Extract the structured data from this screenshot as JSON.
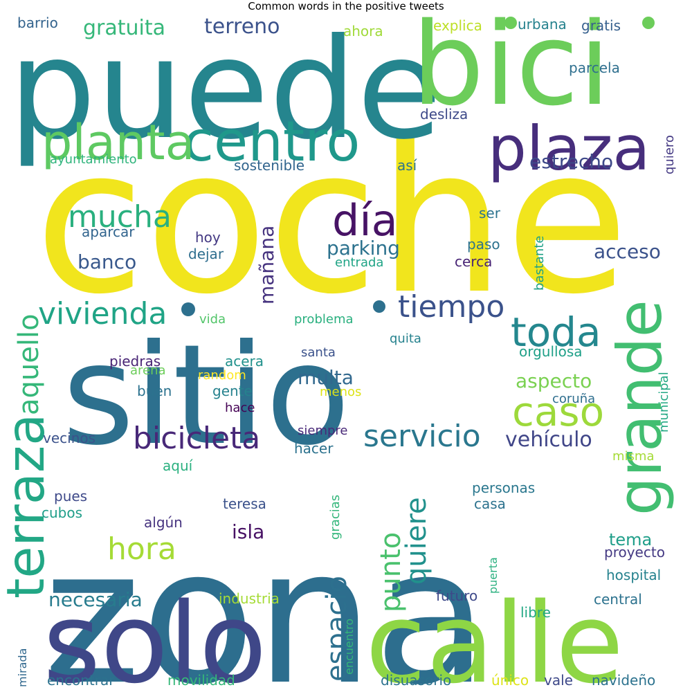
{
  "title": "Common words in the positive tweets",
  "words": [
    {
      "text": "coche",
      "color": "#f1e51d"
    },
    {
      "text": "zona",
      "color": "#2d6e8e"
    },
    {
      "text": "sitio",
      "color": "#2d708e"
    },
    {
      "text": "puede",
      "color": "#25858e"
    },
    {
      "text": "bici",
      "color": "#6ccd5a"
    },
    {
      "text": "calle",
      "color": "#8ed645"
    },
    {
      "text": "solo",
      "color": "#3f4788"
    },
    {
      "text": "grande",
      "color": "#42be71"
    },
    {
      "text": "plaza",
      "color": "#472e7c"
    },
    {
      "text": "centro",
      "color": "#1f988b"
    },
    {
      "text": "planta",
      "color": "#5ec962"
    },
    {
      "text": "terraza",
      "color": "#22a785"
    },
    {
      "text": "día",
      "color": "#471365"
    },
    {
      "text": "toda",
      "color": "#24878e"
    },
    {
      "text": "caso",
      "color": "#9dd93b"
    },
    {
      "text": "vivienda",
      "color": "#20a486"
    },
    {
      "text": "tiempo",
      "color": "#3b528b"
    },
    {
      "text": "bicicleta",
      "color": "#482878"
    },
    {
      "text": "servicio",
      "color": "#2a778e"
    },
    {
      "text": "mucha",
      "color": "#2ab07f"
    },
    {
      "text": "hora",
      "color": "#a5db36"
    },
    {
      "text": "aquello",
      "color": "#35b779"
    },
    {
      "text": "espacio",
      "color": "#2d708e"
    },
    {
      "text": "quiere",
      "color": "#21918c"
    },
    {
      "text": "punto",
      "color": "#4ac16d"
    },
    {
      "text": "gratuita",
      "color": "#35b779"
    },
    {
      "text": "terreno",
      "color": "#3b528b"
    },
    {
      "text": "vehículo",
      "color": "#404688"
    },
    {
      "text": "parking",
      "color": "#2c728e"
    },
    {
      "text": "estrecho",
      "color": "#3e4989"
    },
    {
      "text": "acceso",
      "color": "#3b528b"
    },
    {
      "text": "banco",
      "color": "#38588c"
    },
    {
      "text": "aspecto",
      "color": "#7ad151"
    },
    {
      "text": "multa",
      "color": "#31688e"
    },
    {
      "text": "mañana",
      "color": "#46337f"
    },
    {
      "text": "necesaria",
      "color": "#287c8e"
    },
    {
      "text": "isla",
      "color": "#471164"
    },
    {
      "text": "tema",
      "color": "#1f9e89"
    },
    {
      "text": "barrio",
      "color": "#33638d"
    },
    {
      "text": "ahora",
      "color": "#a0da39"
    },
    {
      "text": "explica",
      "color": "#bddf26"
    },
    {
      "text": "urbana",
      "color": "#26828e"
    },
    {
      "text": "gratis",
      "color": "#355f8d"
    },
    {
      "text": "parcela",
      "color": "#2e6f8e"
    },
    {
      "text": "desliza",
      "color": "#3e4a89"
    },
    {
      "text": "quiero",
      "color": "#443983"
    },
    {
      "text": "ayuntamiento",
      "color": "#2fb47c"
    },
    {
      "text": "sostenible",
      "color": "#32658e"
    },
    {
      "text": "así",
      "color": "#2c738e"
    },
    {
      "text": "ser",
      "color": "#2c738e"
    },
    {
      "text": "aparcar",
      "color": "#32658e"
    },
    {
      "text": "hoy",
      "color": "#443983"
    },
    {
      "text": "dejar",
      "color": "#2e6e8e"
    },
    {
      "text": "paso",
      "color": "#2c728e"
    },
    {
      "text": "entrada",
      "color": "#20a486"
    },
    {
      "text": "cerca",
      "color": "#482475"
    },
    {
      "text": "bastante",
      "color": "#1fa187"
    },
    {
      "text": "vida",
      "color": "#52c569"
    },
    {
      "text": "problema",
      "color": "#2ab07f"
    },
    {
      "text": "quita",
      "color": "#26828e"
    },
    {
      "text": "orgullosa",
      "color": "#1fa088"
    },
    {
      "text": "piedras",
      "color": "#482475"
    },
    {
      "text": "acera",
      "color": "#21918c"
    },
    {
      "text": "santa",
      "color": "#3b528b"
    },
    {
      "text": "arena",
      "color": "#6ccd5a"
    },
    {
      "text": "random",
      "color": "#fde725"
    },
    {
      "text": "municipal",
      "color": "#22a884"
    },
    {
      "text": "buen",
      "color": "#2c728e"
    },
    {
      "text": "gente",
      "color": "#26828e"
    },
    {
      "text": "menos",
      "color": "#dde318"
    },
    {
      "text": "hace",
      "color": "#440154"
    },
    {
      "text": "coruña",
      "color": "#2e6e8e"
    },
    {
      "text": "vecinos",
      "color": "#3b528b"
    },
    {
      "text": "siempre",
      "color": "#482878"
    },
    {
      "text": "hacer",
      "color": "#2c728e"
    },
    {
      "text": "misma",
      "color": "#a5db36"
    },
    {
      "text": "aquí",
      "color": "#2ab07f"
    },
    {
      "text": "pues",
      "color": "#3e4989"
    },
    {
      "text": "gracias",
      "color": "#32b67a"
    },
    {
      "text": "personas",
      "color": "#2a778e"
    },
    {
      "text": "casa",
      "color": "#2c728e"
    },
    {
      "text": "teresa",
      "color": "#3b528b"
    },
    {
      "text": "cubos",
      "color": "#1f9e89"
    },
    {
      "text": "algún",
      "color": "#46337f"
    },
    {
      "text": "proyecto",
      "color": "#443983"
    },
    {
      "text": "puerta",
      "color": "#2ab07f"
    },
    {
      "text": "hospital",
      "color": "#26828e"
    },
    {
      "text": "industria",
      "color": "#a5db36"
    },
    {
      "text": "encuentro",
      "color": "#35b779"
    },
    {
      "text": "futuro",
      "color": "#3e4989"
    },
    {
      "text": "central",
      "color": "#2c728e"
    },
    {
      "text": "libre",
      "color": "#22a884"
    },
    {
      "text": "mirada",
      "color": "#31688e"
    },
    {
      "text": "encontrar",
      "color": "#2c728e"
    },
    {
      "text": "movilidad",
      "color": "#35b779"
    },
    {
      "text": "disuasorio",
      "color": "#2c728e"
    },
    {
      "text": "único",
      "color": "#dde318"
    },
    {
      "text": "vale",
      "color": "#3e4989"
    },
    {
      "text": "navideño",
      "color": "#2c728e"
    }
  ]
}
